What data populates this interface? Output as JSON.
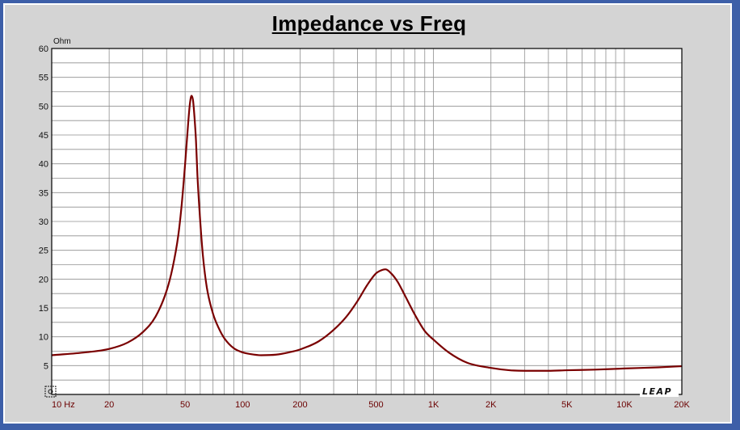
{
  "chart_data": {
    "type": "line",
    "title": "Impedance vs Freq",
    "ylabel": "Ohm",
    "xlabel": "",
    "x_scale": "log",
    "xlim": [
      10,
      20000
    ],
    "ylim": [
      0,
      60
    ],
    "y_ticks": [
      5,
      10,
      15,
      20,
      25,
      30,
      35,
      40,
      45,
      50,
      55,
      60
    ],
    "x_tick_labels": [
      {
        "value": 10,
        "label": "10 Hz"
      },
      {
        "value": 20,
        "label": "20"
      },
      {
        "value": 50,
        "label": "50"
      },
      {
        "value": 100,
        "label": "100"
      },
      {
        "value": 200,
        "label": "200"
      },
      {
        "value": 500,
        "label": "500"
      },
      {
        "value": 1000,
        "label": "1K"
      },
      {
        "value": 2000,
        "label": "2K"
      },
      {
        "value": 5000,
        "label": "5K"
      },
      {
        "value": 10000,
        "label": "10K"
      },
      {
        "value": 20000,
        "label": "20K"
      }
    ],
    "grid": true,
    "logo": "LEAP",
    "colors": {
      "curve": "#7a0000",
      "grid": "#8f8f8f",
      "plot_bg": "#ffffff",
      "frame_bg": "#d4d4d4",
      "border": "#3d5fa8",
      "x_tick_text": "#6b0000"
    },
    "series": [
      {
        "x": [
          10,
          15,
          20,
          25,
          30,
          35,
          40,
          43,
          46,
          48,
          50,
          52,
          53,
          54,
          55,
          56,
          57,
          58,
          60,
          62,
          65,
          70,
          75,
          80,
          90,
          100,
          110,
          125,
          150,
          175,
          200,
          250,
          300,
          350,
          400,
          450,
          500,
          530,
          560,
          600,
          650,
          700,
          800,
          900,
          1000,
          1200,
          1500,
          2000,
          2500,
          3000,
          4000,
          5000,
          7000,
          10000,
          15000,
          20000
        ],
        "y": [
          6.8,
          7.3,
          7.9,
          9.0,
          10.8,
          13.5,
          18.0,
          22.0,
          27.5,
          33.0,
          40.0,
          47.5,
          50.5,
          51.8,
          51.0,
          48.0,
          44.0,
          38.0,
          30.0,
          24.0,
          18.5,
          14.0,
          11.5,
          9.8,
          8.0,
          7.3,
          7.0,
          6.8,
          6.9,
          7.3,
          7.8,
          9.2,
          11.2,
          13.5,
          16.2,
          19.0,
          21.0,
          21.5,
          21.7,
          21.0,
          19.5,
          17.5,
          13.8,
          11.0,
          9.5,
          7.3,
          5.5,
          4.6,
          4.2,
          4.1,
          4.1,
          4.2,
          4.3,
          4.5,
          4.7,
          4.9
        ]
      }
    ]
  }
}
